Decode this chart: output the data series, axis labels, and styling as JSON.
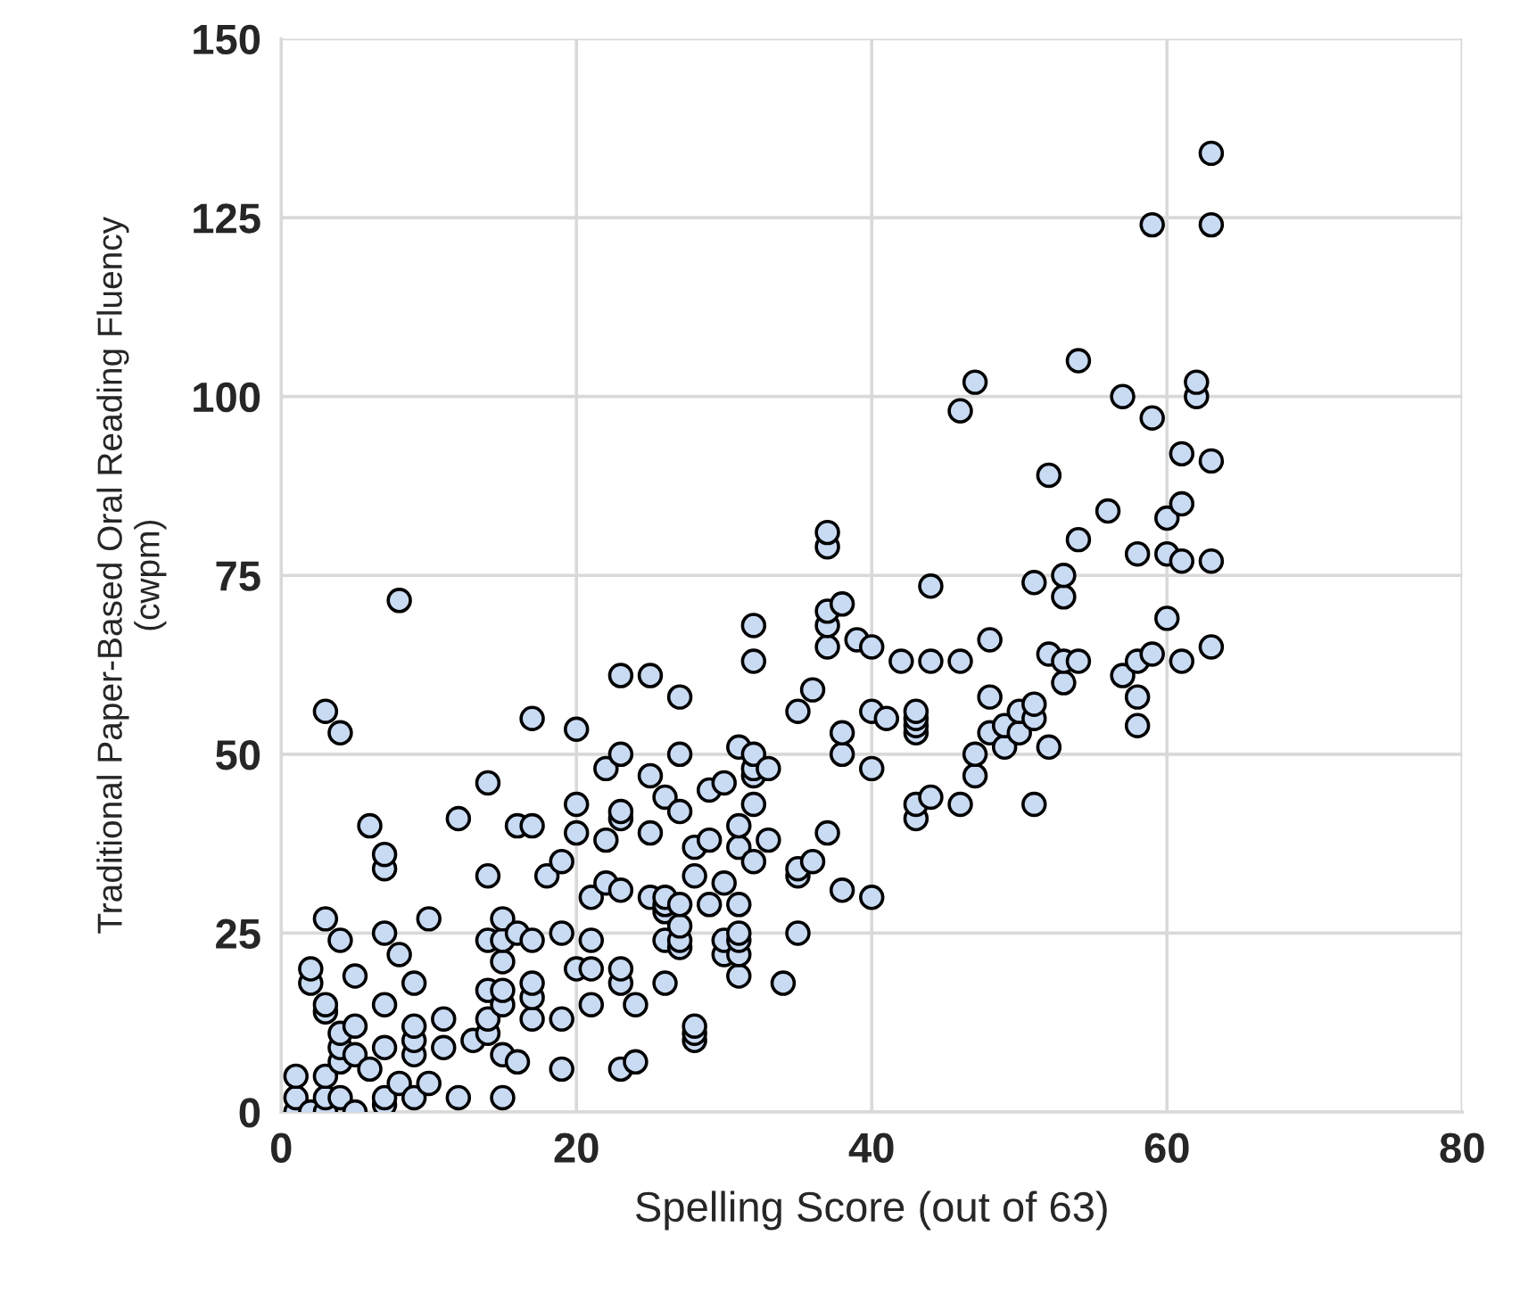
{
  "chart_data": {
    "type": "scatter",
    "xlabel": "Spelling Score (out of 63)",
    "ylabel": "Traditional Paper-Based Oral Reading Fluency\n(cwpm)",
    "xlim": [
      0,
      80
    ],
    "xticks": [
      0,
      20,
      40,
      60,
      80
    ],
    "ylim": [
      0,
      150
    ],
    "yticks": [
      0,
      25,
      50,
      75,
      100,
      125,
      150
    ],
    "grid": true,
    "marker": "circle",
    "series": [
      {
        "color": "#c9daf3",
        "x": [
          1,
          1,
          1,
          2,
          2,
          2,
          3,
          3,
          3,
          3,
          3,
          3,
          3,
          4,
          4,
          4,
          4,
          4,
          4,
          5,
          5,
          5,
          5,
          6,
          6,
          7,
          7,
          7,
          7,
          7,
          7,
          7,
          8,
          8,
          8,
          9,
          9,
          9,
          9,
          9,
          10,
          10,
          11,
          11,
          12,
          12,
          13,
          14,
          14,
          14,
          14,
          14,
          14,
          15,
          15,
          15,
          15,
          15,
          15,
          15,
          16,
          16,
          16,
          17,
          17,
          17,
          17,
          17,
          17,
          18,
          19,
          19,
          19,
          19,
          20,
          20,
          20,
          20,
          21,
          21,
          21,
          21,
          22,
          22,
          22,
          23,
          23,
          23,
          23,
          23,
          23,
          23,
          23,
          24,
          24,
          25,
          25,
          25,
          25,
          26,
          26,
          26,
          26,
          26,
          26,
          27,
          27,
          27,
          27,
          27,
          27,
          27,
          28,
          28,
          28,
          28,
          28,
          29,
          29,
          29,
          30,
          30,
          30,
          30,
          31,
          31,
          31,
          31,
          31,
          31,
          31,
          31,
          32,
          32,
          32,
          32,
          32,
          32,
          32,
          33,
          33,
          34,
          35,
          35,
          35,
          35,
          36,
          36,
          37,
          37,
          37,
          37,
          37,
          37,
          38,
          38,
          38,
          38,
          39,
          40,
          40,
          40,
          40,
          41,
          42,
          43,
          43,
          43,
          43,
          43,
          43,
          44,
          44,
          44,
          46,
          46,
          46,
          47,
          47,
          47,
          48,
          48,
          48,
          49,
          49,
          50,
          50,
          51,
          51,
          51,
          51,
          52,
          52,
          52,
          53,
          53,
          53,
          53,
          54,
          54,
          54,
          56,
          57,
          57,
          58,
          58,
          58,
          58,
          59,
          59,
          59,
          60,
          60,
          60,
          61,
          61,
          61,
          61,
          62,
          62,
          63,
          63,
          63,
          63,
          63
        ],
        "values": [
          0,
          2,
          5,
          0,
          18,
          20,
          0,
          2,
          5,
          14,
          15,
          27,
          56,
          2,
          7,
          9,
          11,
          24,
          53,
          0,
          8,
          12,
          19,
          6,
          40,
          1,
          2,
          9,
          15,
          25,
          34,
          36,
          4,
          22,
          71.5,
          2,
          8,
          10,
          12,
          18,
          4,
          27,
          9,
          13,
          2,
          41,
          10,
          11,
          13,
          17,
          24,
          33,
          46,
          2,
          8,
          15,
          17,
          21,
          24,
          27,
          7,
          25,
          40,
          13,
          16,
          18,
          24,
          40,
          55,
          33,
          6,
          13,
          25,
          35,
          20,
          39,
          43,
          53.5,
          15,
          20,
          30,
          24,
          32,
          38,
          48,
          6,
          18,
          20,
          31,
          41,
          42,
          50,
          61,
          7,
          15,
          30,
          39,
          47,
          61,
          18,
          24,
          28,
          29,
          30,
          44,
          23,
          24,
          26,
          29,
          42,
          50,
          58,
          10,
          11,
          12,
          33,
          37,
          29,
          38,
          45,
          22,
          24,
          32,
          46,
          19,
          22,
          24,
          25,
          29,
          37,
          40,
          51,
          35,
          43,
          47,
          48,
          50,
          63,
          68,
          38,
          48,
          18,
          25,
          33,
          34,
          56,
          35,
          59,
          39,
          65,
          68,
          70,
          79,
          81,
          31,
          50,
          53,
          71,
          66,
          30,
          48,
          56,
          65,
          55,
          63,
          41,
          43,
          53,
          54,
          55,
          56,
          44,
          63,
          73.5,
          43,
          63,
          98,
          47,
          50,
          102,
          53,
          58,
          66,
          51,
          54,
          53,
          56,
          43,
          55,
          57,
          74,
          51,
          64,
          89,
          60,
          63,
          72,
          75,
          63,
          80,
          105,
          84,
          61,
          100,
          54,
          58,
          63,
          78,
          64,
          97,
          124,
          69,
          78,
          83,
          63,
          77,
          85,
          92,
          100,
          102,
          65,
          77,
          91,
          124,
          134
        ]
      }
    ]
  }
}
